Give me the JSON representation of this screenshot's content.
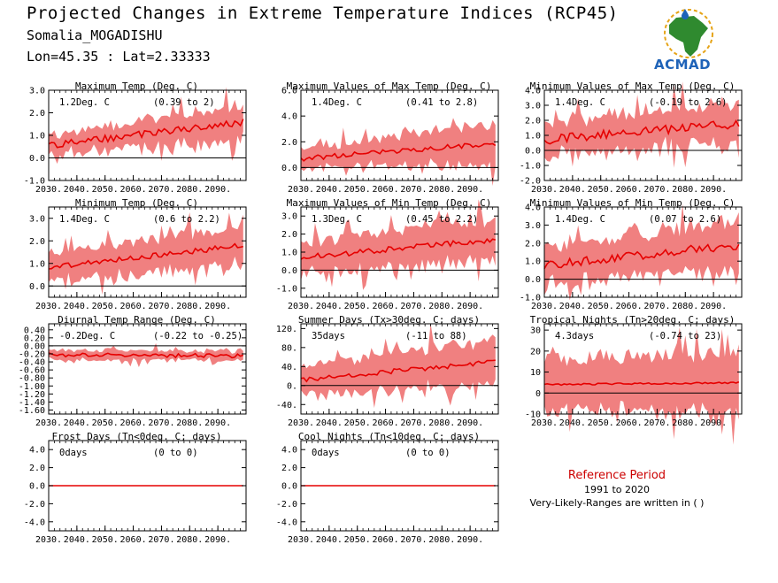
{
  "header": {
    "title": "Projected Changes in Extreme Temperature Indices (RCP45)",
    "location": "Somalia_MOGADISHU",
    "coordinates": "Lon=45.35 : Lat=2.33333"
  },
  "logo": {
    "text": "ACMAD"
  },
  "reference": {
    "title": "Reference Period",
    "years": "1991 to 2020",
    "note": "Very-Likely-Ranges are written in ( )"
  },
  "colors": {
    "band": "#f08080",
    "line": "#e60000",
    "zero": "#000000"
  },
  "chart_data": [
    {
      "type": "area",
      "title": "Maximum Temp (Deg. C)",
      "value_label": "1.2Deg. C",
      "range_label": "(0.39 to 2)",
      "ylim": [
        -1.0,
        3.0
      ],
      "y_ticks": [
        "3.0",
        "2.0",
        "1.0",
        "0.0",
        "-1.0"
      ],
      "y_tick_values": [
        3,
        2,
        1,
        0,
        -1
      ],
      "x_tick_labels": [
        "2030.",
        "2040.",
        "2050.",
        "2060.",
        "2070.",
        "2080.",
        "2090."
      ],
      "x_start": 2030,
      "x_end": 2099,
      "mean_start": 0.55,
      "mean_end": 1.6,
      "spread_start": 0.45,
      "spread_end": 0.75,
      "noise": 0.15
    },
    {
      "type": "area",
      "title": "Maximum Values of Max Temp (Deg. C)",
      "value_label": "1.4Deg. C",
      "range_label": "(0.41 to 2.8)",
      "ylim": [
        -1.0,
        6.0
      ],
      "y_ticks": [
        "6.0",
        "4.0",
        "2.0",
        "0.0"
      ],
      "y_tick_values": [
        6,
        4,
        2,
        0
      ],
      "x_tick_labels": [
        "2030.",
        "2040.",
        "2050.",
        "2060.",
        "2070.",
        "2080.",
        "2090."
      ],
      "x_start": 2030,
      "x_end": 2099,
      "mean_start": 0.7,
      "mean_end": 1.9,
      "spread_start": 0.8,
      "spread_end": 1.5,
      "noise": 0.2
    },
    {
      "type": "area",
      "title": "Minimum Values of Max Temp (Deg. C)",
      "value_label": "1.4Deg. C",
      "range_label": "(-0.19 to 2.6)",
      "ylim": [
        -2.0,
        4.0
      ],
      "y_ticks": [
        "4.0",
        "3.0",
        "2.0",
        "1.0",
        "0.0",
        "-1.0",
        "-2.0"
      ],
      "y_tick_values": [
        4,
        3,
        2,
        1,
        0,
        -1,
        -2
      ],
      "x_tick_labels": [
        "2030.",
        "2040.",
        "2050.",
        "2060.",
        "2070.",
        "2080.",
        "2090."
      ],
      "x_start": 2030,
      "x_end": 2099,
      "mean_start": 0.7,
      "mean_end": 1.8,
      "spread_start": 1.1,
      "spread_end": 1.4,
      "noise": 0.3
    },
    {
      "type": "area",
      "title": "Minimum Temp (Deg. C)",
      "value_label": "1.4Deg. C",
      "range_label": "(0.6 to 2.2)",
      "ylim": [
        -0.5,
        3.5
      ],
      "y_ticks": [
        "3.0",
        "2.0",
        "1.0",
        "0.0"
      ],
      "y_tick_values": [
        3,
        2,
        1,
        0
      ],
      "x_tick_labels": [
        "2030.",
        "2040.",
        "2050.",
        "2060.",
        "2070.",
        "2080.",
        "2090."
      ],
      "x_start": 2030,
      "x_end": 2099,
      "mean_start": 0.8,
      "mean_end": 1.8,
      "spread_start": 0.6,
      "spread_end": 0.9,
      "noise": 0.12
    },
    {
      "type": "area",
      "title": "Maximum Values of Min Temp (Deg. C)",
      "value_label": "1.3Deg. C",
      "range_label": "(0.45 to 2.2)",
      "ylim": [
        -1.5,
        3.5
      ],
      "y_ticks": [
        "3.0",
        "2.0",
        "1.0",
        "0.0",
        "-1.0"
      ],
      "y_tick_values": [
        3,
        2,
        1,
        0,
        -1
      ],
      "x_tick_labels": [
        "2030.",
        "2040.",
        "2050.",
        "2060.",
        "2070.",
        "2080.",
        "2090."
      ],
      "x_start": 2030,
      "x_end": 2099,
      "mean_start": 0.7,
      "mean_end": 1.7,
      "spread_start": 0.8,
      "spread_end": 1.2,
      "noise": 0.15
    },
    {
      "type": "area",
      "title": "Minimum Values of Min Temp (Deg. C)",
      "value_label": "1.4Deg. C",
      "range_label": "(0.07 to 2.6)",
      "ylim": [
        -1.0,
        4.0
      ],
      "y_ticks": [
        "4.0",
        "3.0",
        "2.0",
        "1.0",
        "0.0",
        "-1.0"
      ],
      "y_tick_values": [
        4,
        3,
        2,
        1,
        0,
        -1
      ],
      "x_tick_labels": [
        "2030.",
        "2040.",
        "2050.",
        "2060.",
        "2070.",
        "2080.",
        "2090."
      ],
      "x_start": 2030,
      "x_end": 2099,
      "mean_start": 0.8,
      "mean_end": 1.9,
      "spread_start": 1.0,
      "spread_end": 1.4,
      "noise": 0.25
    },
    {
      "type": "area",
      "title": "Diurnal Temp Range (Deg. C)",
      "value_label": "-0.2Deg. C",
      "range_label": "(-0.22 to -0.25)",
      "ylim": [
        -1.7,
        0.55
      ],
      "y_ticks": [
        "0.40",
        "0.20",
        "0.00",
        "-0.20",
        "-0.40",
        "-0.60",
        "-0.80",
        "-1.00",
        "-1.20",
        "-1.40",
        "-1.60"
      ],
      "y_tick_values": [
        0.4,
        0.2,
        0,
        -0.2,
        -0.4,
        -0.6,
        -0.8,
        -1.0,
        -1.2,
        -1.4,
        -1.6
      ],
      "x_tick_labels": [
        "2030.",
        "2040.",
        "2050.",
        "2060.",
        "2070.",
        "2080.",
        "2090."
      ],
      "x_start": 2030,
      "x_end": 2099,
      "mean_start": -0.22,
      "mean_end": -0.25,
      "spread_start": 0.12,
      "spread_end": 0.12,
      "noise": 0.05
    },
    {
      "type": "area",
      "title": "Summer Days (Tx>30deg. C; days)",
      "value_label": "35days",
      "range_label": "(-11 to 88)",
      "ylim": [
        -60,
        130
      ],
      "y_ticks": [
        "120.",
        "80.",
        "40.",
        "0.",
        "-40."
      ],
      "y_tick_values": [
        120,
        80,
        40,
        0,
        -40
      ],
      "x_tick_labels": [
        "2030.",
        "2040.",
        "2050.",
        "2060.",
        "2070.",
        "2080.",
        "2090."
      ],
      "x_start": 2030,
      "x_end": 2099,
      "mean_start": 12,
      "mean_end": 50,
      "spread_start": 30,
      "spread_end": 45,
      "noise": 5
    },
    {
      "type": "area",
      "title": "Tropical Nights (Tn>20deg. C; days)",
      "value_label": "4.3days",
      "range_label": "(-0.74 to 23)",
      "ylim": [
        -10,
        33
      ],
      "y_ticks": [
        "30",
        "20",
        "10",
        "0",
        "-10"
      ],
      "y_tick_values": [
        30,
        20,
        10,
        0,
        -10
      ],
      "x_tick_labels": [
        "2030.",
        "2040.",
        "2050.",
        "2060.",
        "2070.",
        "2080.",
        "2090."
      ],
      "x_start": 2030,
      "x_end": 2099,
      "mean_start": 4,
      "mean_end": 5,
      "spread_start": 12,
      "spread_end": 14,
      "noise": 0.4
    },
    {
      "type": "line",
      "title": "Frost Days (Tn<0deg. C; days)",
      "value_label": "0days",
      "range_label": "(0 to 0)",
      "ylim": [
        -5.0,
        5.0
      ],
      "y_ticks": [
        "4.0",
        "2.0",
        "0.0",
        "-2.0",
        "-4.0"
      ],
      "y_tick_values": [
        4,
        2,
        0,
        -2,
        -4
      ],
      "x_tick_labels": [
        "2030.",
        "2040.",
        "2050.",
        "2060.",
        "2070.",
        "2080.",
        "2090."
      ],
      "x_start": 2030,
      "x_end": 2099,
      "mean_start": 0,
      "mean_end": 0,
      "spread_start": 0,
      "spread_end": 0,
      "noise": 0
    },
    {
      "type": "line",
      "title": "Cool Nights (Tn<10deg. C; days)",
      "value_label": "0days",
      "range_label": "(0 to 0)",
      "ylim": [
        -5.0,
        5.0
      ],
      "y_ticks": [
        "4.0",
        "2.0",
        "0.0",
        "-2.0",
        "-4.0"
      ],
      "y_tick_values": [
        4,
        2,
        0,
        -2,
        -4
      ],
      "x_tick_labels": [
        "2030.",
        "2040.",
        "2050.",
        "2060.",
        "2070.",
        "2080.",
        "2090."
      ],
      "x_start": 2030,
      "x_end": 2099,
      "mean_start": 0,
      "mean_end": 0,
      "spread_start": 0,
      "spread_end": 0,
      "noise": 0
    }
  ]
}
